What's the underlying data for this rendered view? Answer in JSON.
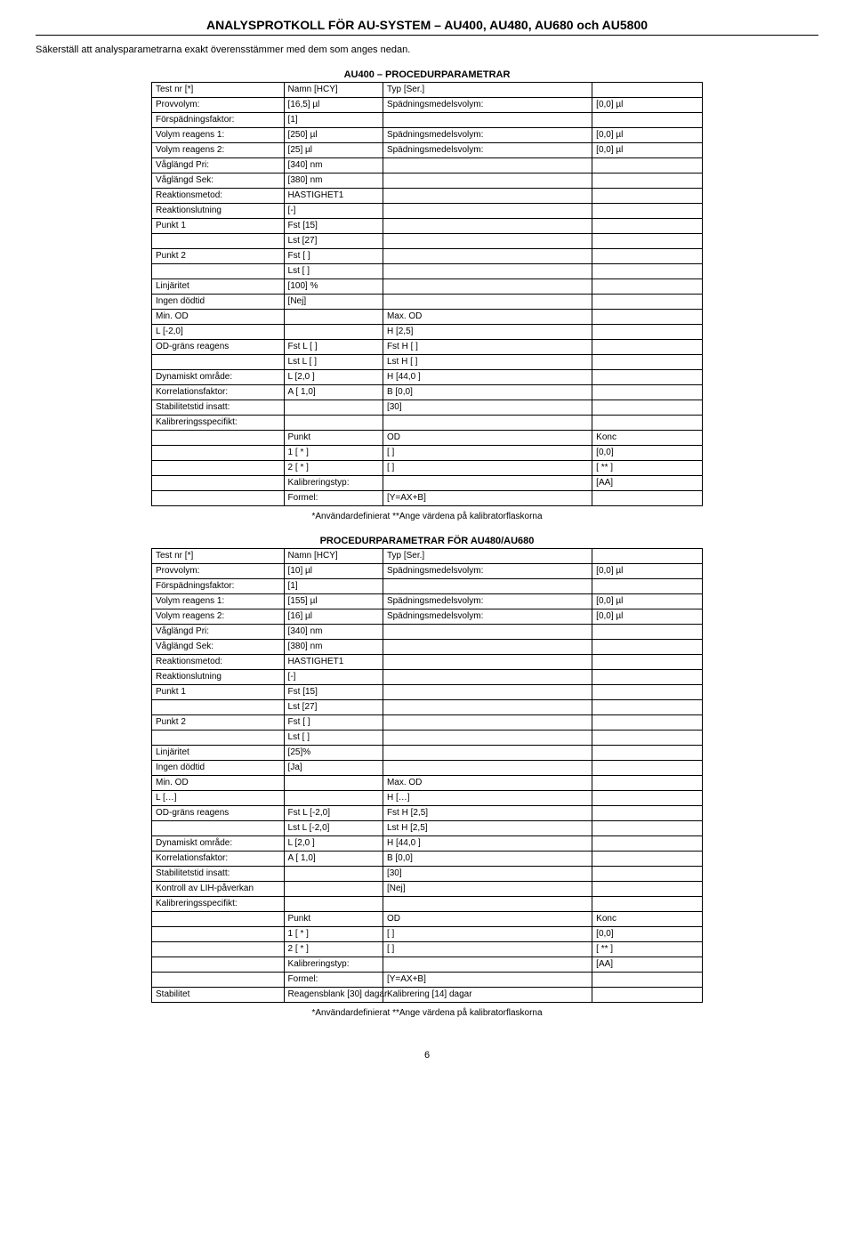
{
  "header": {
    "title": "ANALYSPROTKOLL FÖR AU-SYSTEM – AU400, AU480, AU680 och AU5800",
    "subtitle": "Säkerställ att analysparametrarna exakt överensstämmer med dem som anges nedan."
  },
  "section1": {
    "title": "AU400 – PROCEDURPARAMETRAR",
    "rows": [
      [
        "Test nr  [*]",
        "Namn  [HCY]",
        "Typ  [Ser.]",
        ""
      ],
      [
        "Provvolym:",
        "[16,5] µl",
        "Spädningsmedelsvolym:",
        "[0,0] µl"
      ],
      [
        "Förspädningsfaktor:",
        "[1]",
        "",
        ""
      ],
      [
        "Volym reagens 1:",
        "[250] µl",
        "Spädningsmedelsvolym:",
        "[0,0] µl"
      ],
      [
        "Volym reagens 2:",
        "[25] µl",
        "Spädningsmedelsvolym:",
        "[0,0] µl"
      ],
      [
        "Våglängd Pri:",
        "[340] nm",
        "",
        ""
      ],
      [
        "Våglängd Sek:",
        "[380] nm",
        "",
        ""
      ],
      [
        "Reaktionsmetod:",
        "HASTIGHET1",
        "",
        ""
      ],
      [
        "Reaktionslutning",
        "[-]",
        "",
        ""
      ],
      [
        "Punkt 1",
        "Fst  [15]",
        "",
        ""
      ],
      [
        "",
        "Lst  [27]",
        "",
        ""
      ],
      [
        "Punkt 2",
        "Fst  [  ]",
        "",
        ""
      ],
      [
        "",
        "Lst  [  ]",
        "",
        ""
      ],
      [
        "Linjäritet",
        "[100] %",
        "",
        ""
      ],
      [
        "Ingen dödtid",
        "[Nej]",
        "",
        ""
      ],
      [
        "Min. OD",
        "",
        "Max. OD",
        ""
      ],
      [
        "L   [-2,0]",
        "",
        "H   [2,5]",
        ""
      ],
      [
        "OD-gräns reagens",
        "Fst L  [   ]",
        "Fst H  [   ]",
        ""
      ],
      [
        "",
        "Lst L  [   ]",
        "Lst H  [   ]",
        ""
      ],
      [
        "Dynamiskt område:",
        "L   [2,0 ]",
        "H  [44,0 ]",
        ""
      ],
      [
        "Korrelationsfaktor:",
        "A   [ 1,0]",
        "B   [0,0]",
        ""
      ],
      [
        "Stabilitetstid insatt:",
        "",
        "[30]",
        ""
      ],
      [
        "Kalibreringsspecifikt:",
        "",
        "",
        ""
      ],
      [
        "",
        "Punkt",
        "OD",
        "Konc"
      ],
      [
        "",
        "1 [ * ]",
        "[   ]",
        "[0,0]"
      ],
      [
        "",
        "2 [ * ]",
        "[   ]",
        "[ ** ]"
      ],
      [
        "",
        "Kalibreringstyp:",
        "",
        "[AA]"
      ],
      [
        "",
        "Formel:",
        "[Y=AX+B]",
        ""
      ]
    ],
    "footnote": "*Användardefinierat      **Ange värdena på kalibratorflaskorna"
  },
  "section2": {
    "title": "PROCEDURPARAMETRAR FÖR AU480/AU680",
    "rows": [
      [
        "Test nr  [*]",
        "Namn  [HCY]",
        "Typ  [Ser.]",
        ""
      ],
      [
        "Provvolym:",
        "[10] µl",
        "Spädningsmedelsvolym:",
        "[0,0] µl"
      ],
      [
        "Förspädningsfaktor:",
        "[1]",
        "",
        ""
      ],
      [
        "Volym reagens 1:",
        "[155] µl",
        "Spädningsmedelsvolym:",
        "[0,0] µl"
      ],
      [
        "Volym reagens 2:",
        "[16] µl",
        "Spädningsmedelsvolym:",
        "[0,0] µl"
      ],
      [
        "Våglängd Pri:",
        "[340] nm",
        "",
        ""
      ],
      [
        "Våglängd Sek:",
        "[380] nm",
        "",
        ""
      ],
      [
        "Reaktionsmetod:",
        "HASTIGHET1",
        "",
        ""
      ],
      [
        "Reaktionslutning",
        "[-]",
        "",
        ""
      ],
      [
        "Punkt 1",
        "Fst  [15]",
        "",
        ""
      ],
      [
        "",
        "Lst  [27]",
        "",
        ""
      ],
      [
        "Punkt 2",
        "Fst  [  ]",
        "",
        ""
      ],
      [
        "",
        "Lst  [  ]",
        "",
        ""
      ],
      [
        "Linjäritet",
        "[25]%",
        "",
        ""
      ],
      [
        "Ingen dödtid",
        "[Ja]",
        "",
        ""
      ],
      [
        "Min. OD",
        "",
        "Max. OD",
        ""
      ],
      [
        "L   […]",
        "",
        "H   […]",
        ""
      ],
      [
        "OD-gräns reagens",
        "Fst L  [-2,0]",
        "Fst H  [2,5]",
        ""
      ],
      [
        "",
        "Lst L  [-2,0]",
        "Lst H  [2,5]",
        ""
      ],
      [
        "Dynamiskt område:",
        "L   [2,0 ]",
        "H  [44,0 ]",
        ""
      ],
      [
        "Korrelationsfaktor:",
        "A   [ 1,0]",
        "B   [0,0]",
        ""
      ],
      [
        "Stabilitetstid insatt:",
        "",
        "[30]",
        ""
      ],
      [
        "Kontroll av LIH-påverkan",
        "",
        "[Nej]",
        ""
      ],
      [
        "Kalibreringsspecifikt:",
        "",
        "",
        ""
      ],
      [
        "",
        "Punkt",
        "OD",
        "Konc"
      ],
      [
        "",
        "1 [ * ]",
        "[   ]",
        "[0,0]"
      ],
      [
        "",
        "2 [ * ]",
        "[   ]",
        "[ ** ]"
      ],
      [
        "",
        "Kalibreringstyp:",
        "",
        "[AA]"
      ],
      [
        "",
        "Formel:",
        "[Y=AX+B]",
        ""
      ],
      [
        "Stabilitet",
        "Reagensblank [30] dagar",
        "Kalibrering [14] dagar",
        ""
      ]
    ],
    "footnote": "*Användardefinierat      **Ange värdena på kalibratorflaskorna"
  },
  "page_number": "6"
}
